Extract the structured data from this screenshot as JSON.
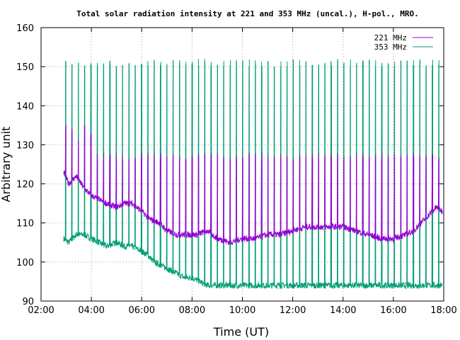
{
  "chart_data": {
    "type": "line",
    "title": "Total solar radiation intensity at 221 and 353 MHz (uncal.), H-pol., MRO.",
    "xlabel": "Time (UT)",
    "ylabel": "Arbitrary unit",
    "xlim": [
      2,
      18
    ],
    "ylim": [
      90,
      160
    ],
    "x_ticks": [
      "02:00",
      "04:00",
      "06:00",
      "08:00",
      "10:00",
      "12:00",
      "14:00",
      "16:00",
      "18:00"
    ],
    "y_ticks": [
      "90",
      "100",
      "110",
      "120",
      "130",
      "140",
      "150",
      "160"
    ],
    "grid": true,
    "legend_position": "top-right",
    "series": [
      {
        "name": "221 MHz",
        "color": "#9400d3",
        "x": [
          2.9,
          3.1,
          3.4,
          3.7,
          4.0,
          4.3,
          4.6,
          5.0,
          5.3,
          5.6,
          6.0,
          6.3,
          6.7,
          7.0,
          7.4,
          7.8,
          8.2,
          8.6,
          9.0,
          9.5,
          10.0,
          10.5,
          11.0,
          11.5,
          12.0,
          12.5,
          13.0,
          13.5,
          14.0,
          14.5,
          15.0,
          15.5,
          16.0,
          16.5,
          16.8,
          17.1,
          17.4,
          17.7,
          17.95
        ],
        "values": [
          123,
          120,
          122,
          119,
          117,
          116,
          115,
          114,
          115,
          115,
          113,
          111,
          110,
          108,
          107,
          107,
          107,
          108,
          106,
          105,
          106,
          106,
          107,
          107,
          108,
          109,
          109,
          109,
          109,
          108,
          107,
          106,
          106,
          107,
          108,
          110,
          112,
          114,
          113
        ],
        "spikes": {
          "count": 60,
          "typical_peak": 127,
          "first_peaks": [
            135,
            134,
            131,
            135,
            133
          ]
        }
      },
      {
        "name": "353 MHz",
        "color": "#009e73",
        "x": [
          2.9,
          3.1,
          3.4,
          3.7,
          4.0,
          4.3,
          4.6,
          5.0,
          5.3,
          5.6,
          5.9,
          6.2,
          6.5,
          6.8,
          7.1,
          7.4,
          7.7,
          8.0,
          8.3,
          8.6,
          9.0,
          9.5,
          10.0,
          10.5,
          11.0,
          11.5,
          12.0,
          12.5,
          13.0,
          13.5,
          14.0,
          14.5,
          15.0,
          15.5,
          16.0,
          16.5,
          17.0,
          17.5,
          17.95
        ],
        "values": [
          106,
          105,
          107,
          107,
          106,
          105,
          104,
          105,
          104,
          104,
          103,
          102,
          100,
          99,
          98,
          97,
          96,
          96,
          95,
          94,
          94,
          94,
          94,
          94,
          94,
          94,
          94,
          94,
          94,
          94,
          94,
          94,
          94,
          94,
          94,
          94,
          94,
          94,
          94
        ],
        "spikes": {
          "count": 60,
          "typical_peak": 151
        }
      }
    ]
  }
}
